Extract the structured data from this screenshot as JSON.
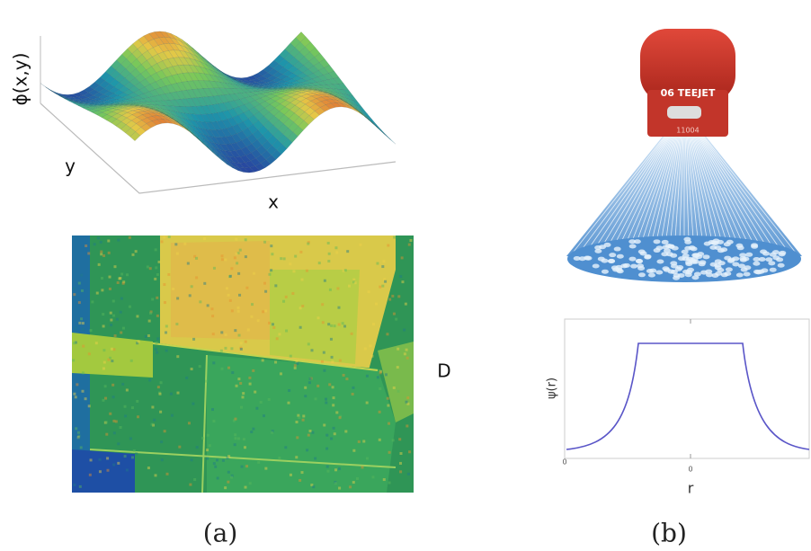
{
  "panel_a": {
    "surface": {
      "z_label": "ϕ(x,y)",
      "y_label": "y",
      "x_label": "x"
    },
    "side_label": "D",
    "caption": "(a)"
  },
  "panel_b": {
    "nozzle_brand": "06 TEEJET",
    "nozzle_code": "11004",
    "profile": {
      "y_label": "ψ(r)",
      "x_label": "r",
      "y_tick": "0",
      "x_tick": "0"
    },
    "caption": "(b)"
  }
}
